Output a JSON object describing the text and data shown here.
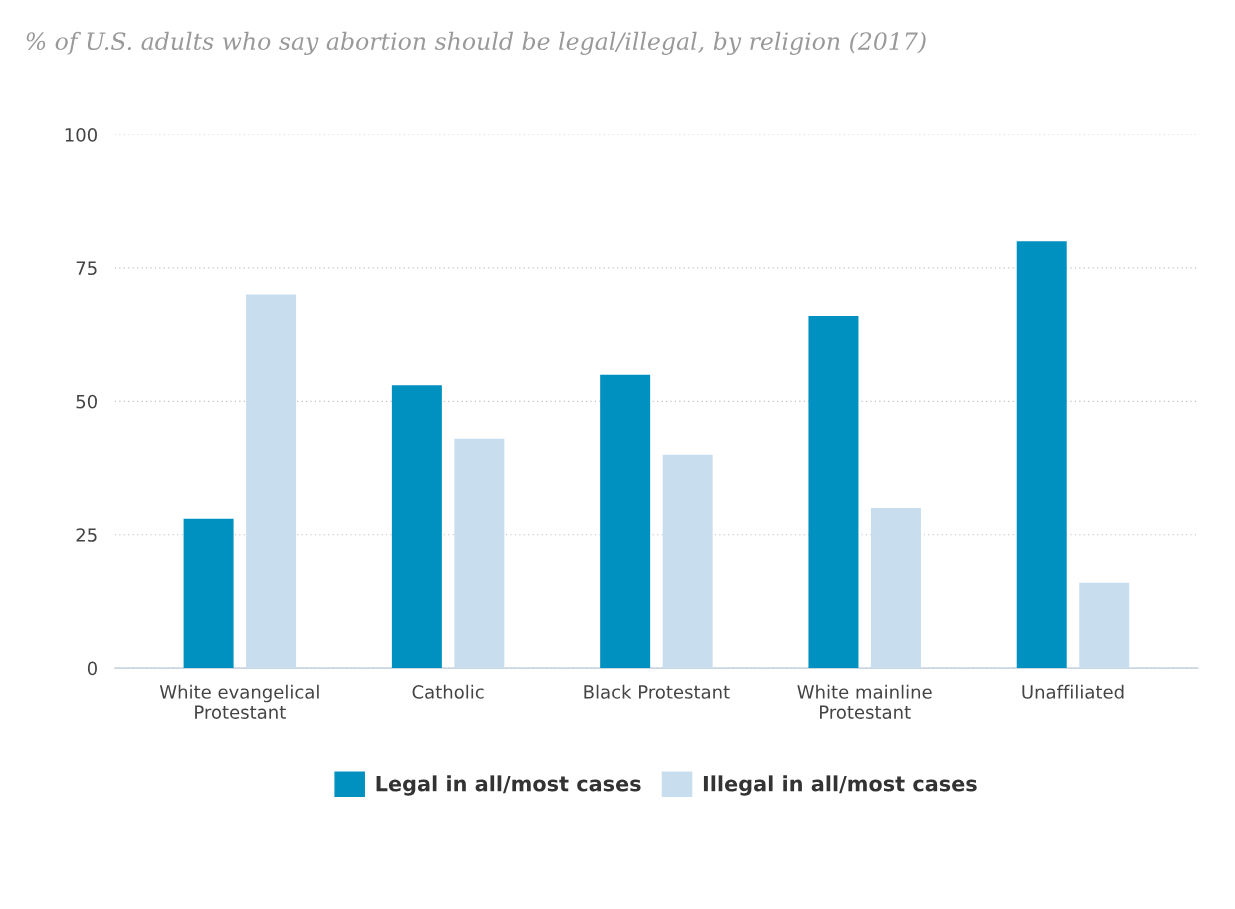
{
  "chart_data": {
    "type": "bar",
    "title": "% of U.S. adults who say abortion should be legal/illegal, by religion (2017)",
    "categories": [
      "White evangelical\nProtestant",
      "Catholic",
      "Black Protestant",
      "White mainline\nProtestant",
      "Unaffiliated"
    ],
    "series": [
      {
        "name": "Legal in all/most cases",
        "color": "#0091c1",
        "values": [
          28,
          53,
          55,
          66,
          80
        ]
      },
      {
        "name": "Illegal in all/most cases",
        "color": "#c8ddee",
        "values": [
          70,
          43,
          40,
          30,
          16
        ]
      }
    ],
    "ylim": [
      0,
      100
    ],
    "yticks": [
      0,
      25,
      50,
      75,
      100
    ],
    "grid": "y",
    "legend": "bottom"
  }
}
